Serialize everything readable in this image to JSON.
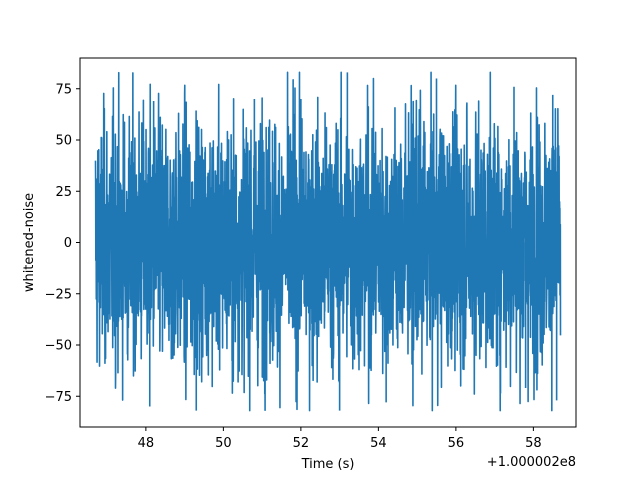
{
  "chart_data": {
    "type": "line",
    "title": "",
    "xlabel": "Time (s)",
    "ylabel": "whitened-noise",
    "x_offset_label": "+1.000002e8",
    "xlim": [
      46.3,
      59.1
    ],
    "ylim": [
      -90,
      90
    ],
    "xticks": [
      48,
      50,
      52,
      54,
      56,
      58
    ],
    "xtick_labels": [
      "48",
      "50",
      "52",
      "54",
      "56",
      "58"
    ],
    "yticks": [
      -75,
      -50,
      -25,
      0,
      25,
      50,
      75
    ],
    "ytick_labels": [
      "−75",
      "−50",
      "−25",
      "0",
      "25",
      "50",
      "75"
    ],
    "grid": false,
    "series": [
      {
        "color": "#1f77b4",
        "x_range": [
          46.7,
          58.7
        ],
        "note_y_extent": [
          -82,
          83
        ],
        "typical_envelope": [
          -50,
          50
        ],
        "peaks": [
          {
            "x": 53.2,
            "y": 83
          },
          {
            "x": 55.5,
            "y": 80
          },
          {
            "x": 53.0,
            "y": -82
          },
          {
            "x": 49.3,
            "y": -82
          },
          {
            "x": 48.1,
            "y": -80
          },
          {
            "x": 57.5,
            "y": 76
          },
          {
            "x": 58.5,
            "y": 72
          },
          {
            "x": 57.8,
            "y": -71
          },
          {
            "x": 52.0,
            "y": 70
          },
          {
            "x": 48.2,
            "y": 69
          },
          {
            "x": 50.8,
            "y": 70
          },
          {
            "x": 54.2,
            "y": -78
          },
          {
            "x": 58.6,
            "y": -77
          }
        ]
      }
    ]
  }
}
